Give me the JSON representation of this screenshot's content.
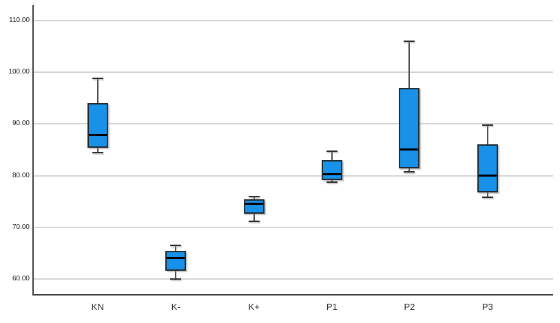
{
  "chart_data": {
    "type": "boxplot",
    "title": "",
    "xlabel": "",
    "ylabel": "",
    "grid": true,
    "legend": "none",
    "categories": [
      "KN",
      "K-",
      "K+",
      "P1",
      "P2",
      "P3"
    ],
    "boxes": [
      {
        "category": "KN",
        "min": 84.5,
        "q1": 85.4,
        "median": 87.8,
        "q3": 94.0,
        "max": 98.8
      },
      {
        "category": "K-",
        "min": 60.0,
        "q1": 61.6,
        "median": 64.1,
        "q3": 65.5,
        "max": 66.5
      },
      {
        "category": "K+",
        "min": 71.2,
        "q1": 72.7,
        "median": 74.6,
        "q3": 75.4,
        "max": 75.9
      },
      {
        "category": "P1",
        "min": 78.8,
        "q1": 79.1,
        "median": 80.3,
        "q3": 83.0,
        "max": 84.7
      },
      {
        "category": "P2",
        "min": 80.8,
        "q1": 81.4,
        "median": 85.0,
        "q3": 97.0,
        "max": 106.0
      },
      {
        "category": "P3",
        "min": 75.8,
        "q1": 76.8,
        "median": 80.0,
        "q3": 86.0,
        "max": 89.8
      }
    ],
    "y_axis": {
      "tick_labels": [
        "110.00",
        "100.00",
        "90.00",
        "80.00",
        "70.00",
        "60.00"
      ],
      "tick_values": [
        110,
        100,
        90,
        80,
        70,
        60
      ],
      "visible_range": [
        57,
        113
      ]
    },
    "x_axis": {
      "tick_labels": [
        "KN",
        "K-",
        "K+",
        "P1",
        "P2",
        "P3"
      ]
    },
    "colors": {
      "box_fill": "#1792e8",
      "box_border": "#212a30",
      "median": "#000000",
      "whisker": "#4f4f4f",
      "gridline": "#d4d4d4",
      "axis": "#3f3f3f",
      "tick_text": "#1c1c1c",
      "background": "#ffffff"
    }
  }
}
